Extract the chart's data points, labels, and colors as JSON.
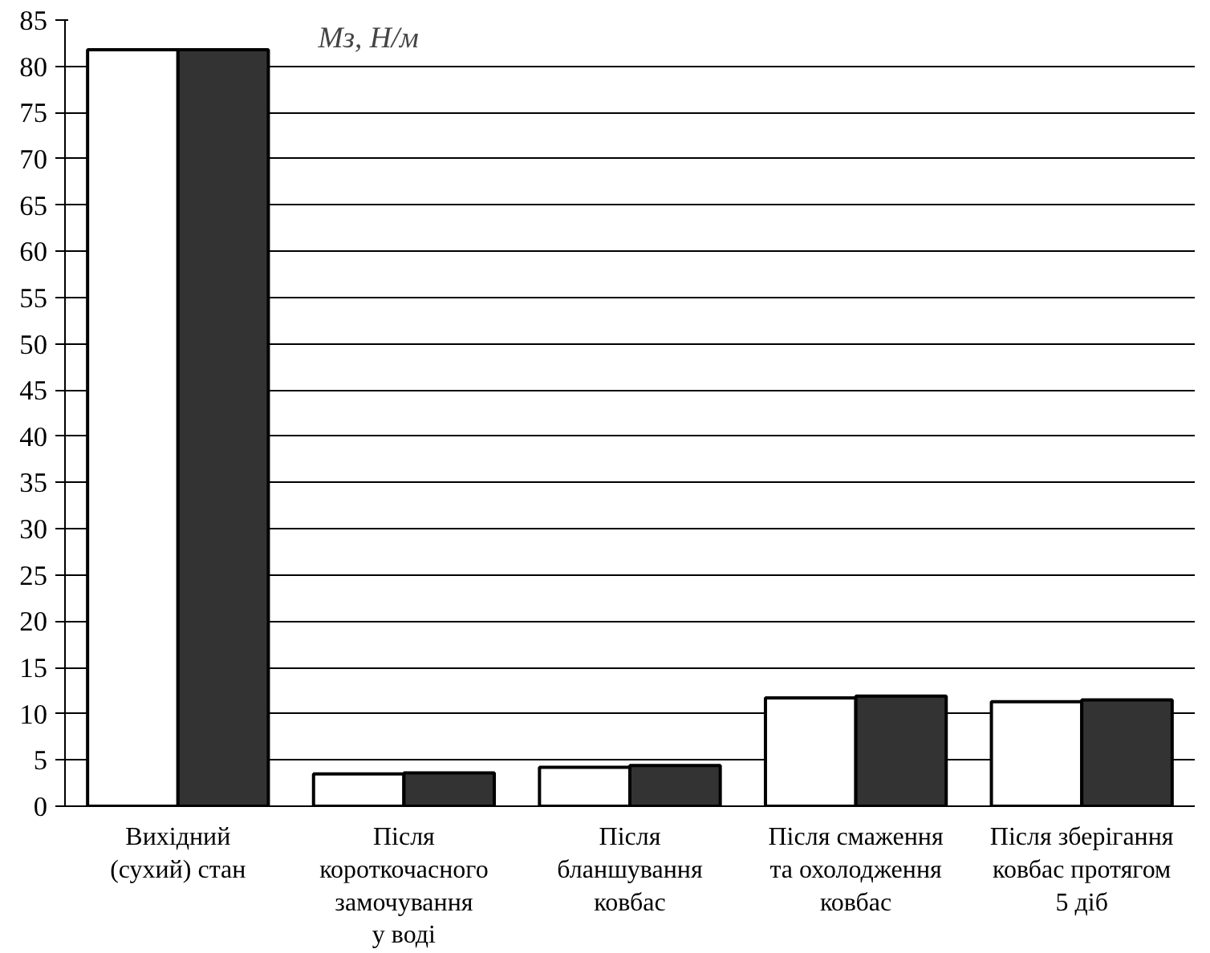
{
  "chart_data": {
    "type": "bar",
    "ylabel": "Мз, Н/м",
    "categories": [
      "Вихідний\n(сухий) стан",
      "Після\nкороткочасного\nзамочування\nу воді",
      "Після\nбланшування\nковбас",
      "Після смаження\nта охолодження\nковбас",
      "Після зберігання\nковбас протягом\n5 діб"
    ],
    "series": [
      {
        "color": "#ffffff",
        "values": [
          81.8,
          3.5,
          4.2,
          11.7,
          11.3
        ]
      },
      {
        "color": "#333333",
        "values": [
          81.8,
          3.6,
          4.4,
          11.9,
          11.5
        ]
      }
    ],
    "ylim": [
      0,
      85
    ],
    "yticks": [
      0,
      5,
      10,
      15,
      20,
      25,
      30,
      35,
      40,
      45,
      50,
      55,
      60,
      65,
      70,
      75,
      80,
      85
    ],
    "grid": "y"
  }
}
